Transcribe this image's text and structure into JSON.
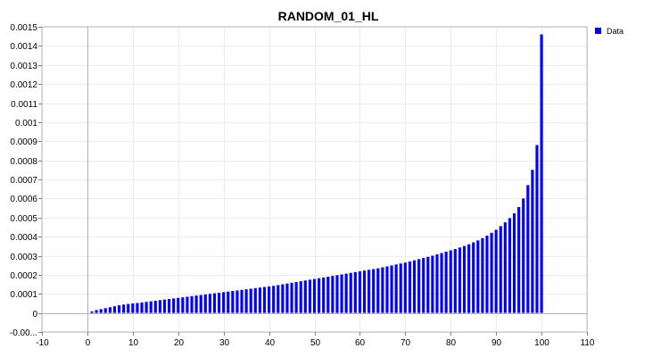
{
  "chart_data": {
    "type": "bar",
    "title": "RANDOM_01_HL",
    "xlabel": "",
    "ylabel": "",
    "xlim": [
      -10,
      110
    ],
    "ylim": [
      -0.0001,
      0.0015
    ],
    "xticks": [
      -10,
      0,
      10,
      20,
      30,
      40,
      50,
      60,
      70,
      80,
      90,
      100,
      110
    ],
    "yticks": [
      -0.0001,
      0,
      0.0001,
      0.0002,
      0.0003,
      0.0004,
      0.0005,
      0.0006,
      0.0007,
      0.0008,
      0.0009,
      0.001,
      0.0011,
      0.0012,
      0.0013,
      0.0014,
      0.0015
    ],
    "ytick_labels": [
      "-0.00...",
      "0",
      "0.0001",
      "0.0002",
      "0.0003",
      "0.0004",
      "0.0005",
      "0.0006",
      "0.0007",
      "0.0008",
      "0.0009",
      "0.001",
      "0.0011",
      "0.0012",
      "0.0013",
      "0.0014",
      "0.0015"
    ],
    "grid": true,
    "legend_position": "top-right",
    "series": [
      {
        "name": "Data",
        "color": "#0000ff",
        "x": [
          1,
          2,
          3,
          4,
          5,
          6,
          7,
          8,
          9,
          10,
          11,
          12,
          13,
          14,
          15,
          16,
          17,
          18,
          19,
          20,
          21,
          22,
          23,
          24,
          25,
          26,
          27,
          28,
          29,
          30,
          31,
          32,
          33,
          34,
          35,
          36,
          37,
          38,
          39,
          40,
          41,
          42,
          43,
          44,
          45,
          46,
          47,
          48,
          49,
          50,
          51,
          52,
          53,
          54,
          55,
          56,
          57,
          58,
          59,
          60,
          61,
          62,
          63,
          64,
          65,
          66,
          67,
          68,
          69,
          70,
          71,
          72,
          73,
          74,
          75,
          76,
          77,
          78,
          79,
          80,
          81,
          82,
          83,
          84,
          85,
          86,
          87,
          88,
          89,
          90,
          91,
          92,
          93,
          94,
          95,
          96,
          97,
          98,
          99,
          100
        ],
        "values": [
          8e-06,
          1.5e-05,
          2e-05,
          2.5e-05,
          3e-05,
          3.5e-05,
          4e-05,
          4.4e-05,
          4.7e-05,
          5e-05,
          5.2e-05,
          5.5e-05,
          5.8e-05,
          6.1e-05,
          6.4e-05,
          6.7e-05,
          7e-05,
          7.3e-05,
          7.6e-05,
          7.9e-05,
          8.2e-05,
          8.5e-05,
          8.8e-05,
          9.1e-05,
          9.4e-05,
          9.7e-05,
          0.0001,
          0.000103,
          0.000106,
          0.000109,
          0.000112,
          0.000115,
          0.000118,
          0.000121,
          0.000124,
          0.000127,
          0.00013,
          0.000133,
          0.000136,
          0.000139,
          0.000142,
          0.000146,
          0.00015,
          0.000154,
          0.000158,
          0.000162,
          0.000166,
          0.00017,
          0.000174,
          0.000178,
          0.000182,
          0.000186,
          0.00019,
          0.000194,
          0.000198,
          0.000202,
          0.000206,
          0.00021,
          0.000214,
          0.000218,
          0.000222,
          0.000226,
          0.00023,
          0.000234,
          0.000239,
          0.000244,
          0.000249,
          0.000254,
          0.000259,
          0.000264,
          0.00027,
          0.000276,
          0.000282,
          0.000288,
          0.000294,
          0.0003,
          0.000307,
          0.000314,
          0.000321,
          0.000328,
          0.000335,
          0.000343,
          0.000351,
          0.00036,
          0.00037,
          0.00038,
          0.000392,
          0.000405,
          0.00042,
          0.000436,
          0.000455,
          0.000475,
          0.000497,
          0.000522,
          0.000555,
          0.0006,
          0.00067,
          0.00075,
          0.00088,
          0.00146
        ]
      }
    ]
  }
}
